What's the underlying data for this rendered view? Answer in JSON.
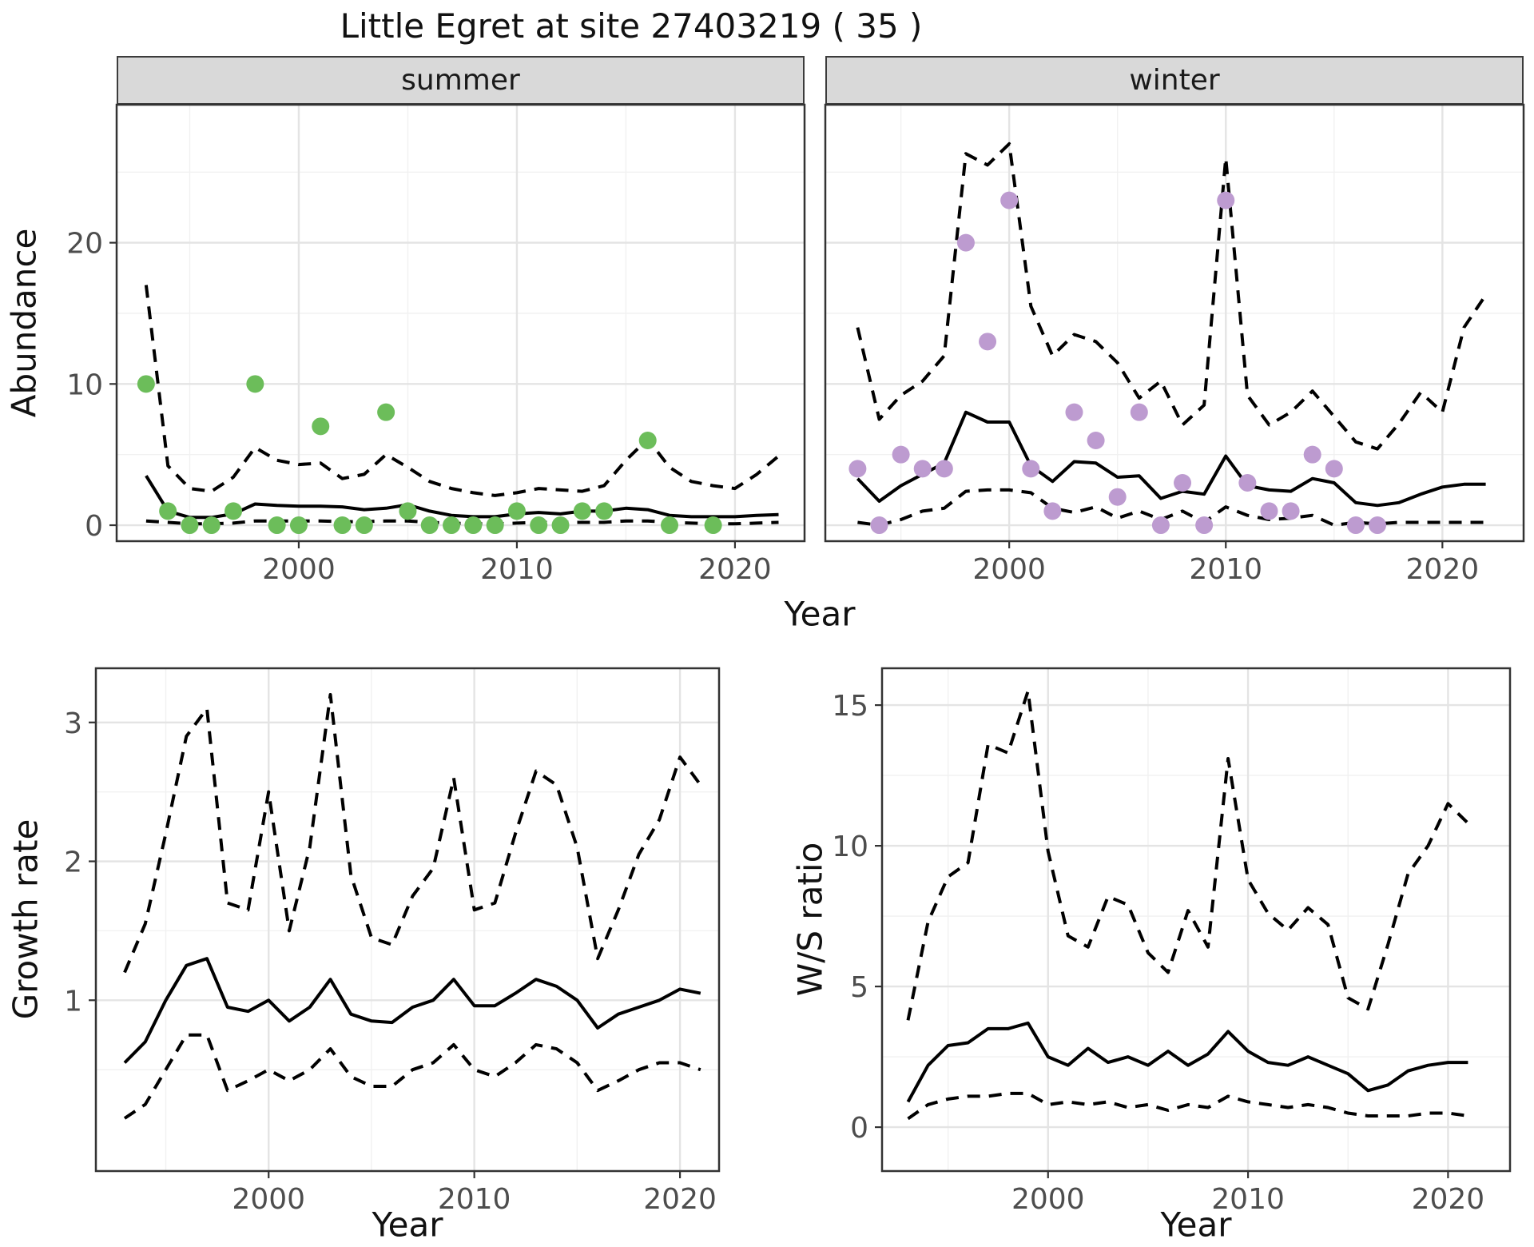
{
  "chart_data": {
    "type": "line",
    "title": "Little Egret at site 27403219 ( 35 )",
    "line_color": "#000000",
    "grid": true,
    "legend": "none",
    "facets": [
      {
        "id": "summer",
        "label": "summer",
        "xlabel": "Year",
        "ylabel": "Abundance",
        "xlim": [
          1991.65,
          2023.19
        ],
        "ylim": [
          -1.13,
          29.77
        ],
        "x_ticks": [
          2000,
          2010,
          2020
        ],
        "x_minor": [
          1995,
          2005,
          2015
        ],
        "y_ticks": [
          0,
          10,
          20
        ],
        "y_minor": [
          5,
          15,
          25
        ],
        "years": [
          1993,
          1994,
          1995,
          1996,
          1997,
          1998,
          1999,
          2000,
          2001,
          2002,
          2003,
          2004,
          2005,
          2006,
          2007,
          2008,
          2009,
          2010,
          2011,
          2012,
          2013,
          2014,
          2015,
          2016,
          2017,
          2018,
          2019,
          2020,
          2021,
          2022
        ],
        "series": [
          {
            "name": "upper-ci",
            "line_style": "dashed",
            "values": [
              17,
              4.2,
              2.6,
              2.4,
              3.4,
              5.5,
              4.6,
              4.3,
              4.4,
              3.3,
              3.6,
              5.0,
              4.1,
              3.1,
              2.6,
              2.3,
              2.1,
              2.3,
              2.6,
              2.5,
              2.4,
              2.8,
              4.6,
              6.1,
              4.1,
              3.1,
              2.8,
              2.6,
              3.6,
              4.9
            ]
          },
          {
            "name": "lower-ci",
            "line_style": "dashed",
            "values": [
              0.3,
              0.2,
              0.1,
              0.1,
              0.15,
              0.3,
              0.3,
              0.3,
              0.3,
              0.25,
              0.25,
              0.3,
              0.3,
              0.2,
              0.15,
              0.1,
              0.1,
              0.15,
              0.2,
              0.2,
              0.2,
              0.2,
              0.3,
              0.3,
              0.2,
              0.15,
              0.1,
              0.1,
              0.15,
              0.2
            ]
          },
          {
            "name": "median",
            "line_style": "solid",
            "values": [
              3.5,
              1.0,
              0.55,
              0.55,
              0.8,
              1.5,
              1.4,
              1.35,
              1.35,
              1.3,
              1.1,
              1.2,
              1.45,
              1.0,
              0.7,
              0.6,
              0.6,
              0.8,
              0.9,
              0.8,
              1.0,
              1.0,
              1.2,
              1.1,
              0.7,
              0.6,
              0.6,
              0.6,
              0.7,
              0.75
            ]
          }
        ],
        "points": {
          "name": "summer-observed-counts",
          "color": "#6cbd5a",
          "values": [
            [
              1993,
              10
            ],
            [
              1994,
              1
            ],
            [
              1995,
              0
            ],
            [
              1996,
              0
            ],
            [
              1997,
              1
            ],
            [
              1998,
              10
            ],
            [
              1999,
              0
            ],
            [
              2000,
              0
            ],
            [
              2001,
              7
            ],
            [
              2002,
              0
            ],
            [
              2003,
              0
            ],
            [
              2004,
              8
            ],
            [
              2005,
              1
            ],
            [
              2006,
              0
            ],
            [
              2007,
              0
            ],
            [
              2008,
              0
            ],
            [
              2009,
              0
            ],
            [
              2010,
              1
            ],
            [
              2011,
              0
            ],
            [
              2012,
              0
            ],
            [
              2013,
              1
            ],
            [
              2014,
              1
            ],
            [
              2016,
              6
            ],
            [
              2017,
              0
            ],
            [
              2019,
              0
            ]
          ]
        }
      },
      {
        "id": "winter",
        "label": "winter",
        "xlabel": "Year",
        "ylabel": "Abundance",
        "xlim": [
          1991.51,
          2023.75
        ],
        "ylim": [
          -1.13,
          29.77
        ],
        "x_ticks": [
          2000,
          2010,
          2020
        ],
        "x_minor": [
          1995,
          2005,
          2015
        ],
        "y_ticks": [
          0,
          10,
          20
        ],
        "y_minor": [
          5,
          15,
          25
        ],
        "years": [
          1993,
          1994,
          1995,
          1996,
          1997,
          1998,
          1999,
          2000,
          2001,
          2002,
          2003,
          2004,
          2005,
          2006,
          2007,
          2008,
          2009,
          2010,
          2011,
          2012,
          2013,
          2014,
          2015,
          2016,
          2017,
          2018,
          2019,
          2020,
          2021,
          2022
        ],
        "series": [
          {
            "name": "upper-ci",
            "line_style": "dashed",
            "values": [
              14,
              7.5,
              9.2,
              10.2,
              12.0,
              26.3,
              25.5,
              27.0,
              15.5,
              12.0,
              13.5,
              13.0,
              11.5,
              9.0,
              10.2,
              7.1,
              8.5,
              26.0,
              9.2,
              7.1,
              8.0,
              9.5,
              7.7,
              5.9,
              5.4,
              7.2,
              9.4,
              8.0,
              14.0,
              16.3
            ]
          },
          {
            "name": "lower-ci",
            "line_style": "dashed",
            "values": [
              0.2,
              0.0,
              0.4,
              1.0,
              1.2,
              2.4,
              2.5,
              2.5,
              2.3,
              1.2,
              0.9,
              1.3,
              0.5,
              1.0,
              0.4,
              1.0,
              0.2,
              1.3,
              0.7,
              0.4,
              0.5,
              0.7,
              0.0,
              0.2,
              0.1,
              0.2,
              0.2,
              0.2,
              0.2,
              0.2
            ]
          },
          {
            "name": "median",
            "line_style": "solid",
            "values": [
              3.3,
              1.7,
              2.8,
              3.6,
              4.4,
              8.0,
              7.3,
              7.3,
              4.2,
              3.1,
              4.5,
              4.4,
              3.4,
              3.5,
              1.9,
              2.4,
              2.2,
              4.9,
              2.8,
              2.5,
              2.4,
              3.3,
              3.0,
              1.6,
              1.4,
              1.6,
              2.2,
              2.7,
              2.9,
              2.9
            ]
          }
        ],
        "points": {
          "name": "winter-observed-counts",
          "color": "#bd9bd0",
          "values": [
            [
              1993,
              4
            ],
            [
              1994,
              0
            ],
            [
              1995,
              5
            ],
            [
              1996,
              4
            ],
            [
              1997,
              4
            ],
            [
              1998,
              20
            ],
            [
              1999,
              13
            ],
            [
              2000,
              23
            ],
            [
              2001,
              4
            ],
            [
              2002,
              1
            ],
            [
              2003,
              8
            ],
            [
              2004,
              6
            ],
            [
              2005,
              2
            ],
            [
              2006,
              8
            ],
            [
              2007,
              0
            ],
            [
              2008,
              3
            ],
            [
              2009,
              0
            ],
            [
              2010,
              23
            ],
            [
              2011,
              3
            ],
            [
              2012,
              1
            ],
            [
              2013,
              1
            ],
            [
              2014,
              5
            ],
            [
              2015,
              4
            ],
            [
              2016,
              0
            ],
            [
              2017,
              0
            ]
          ]
        }
      },
      {
        "id": "growth_rate",
        "label": null,
        "xlabel": "Year",
        "ylabel": "Growth rate",
        "xlim": [
          1991.6,
          2021.9
        ],
        "ylim": [
          -0.23,
          3.39
        ],
        "x_ticks": [
          2000,
          2010,
          2020
        ],
        "x_minor": [
          1995,
          2005,
          2015
        ],
        "y_ticks": [
          1,
          2,
          3
        ],
        "y_minor": [
          0.5,
          1.5,
          2.5
        ],
        "years": [
          1993,
          1994,
          1995,
          1996,
          1997,
          1998,
          1999,
          2000,
          2001,
          2002,
          2003,
          2004,
          2005,
          2006,
          2007,
          2008,
          2009,
          2010,
          2011,
          2012,
          2013,
          2014,
          2015,
          2016,
          2017,
          2018,
          2019,
          2020,
          2021
        ],
        "series": [
          {
            "name": "upper-ci",
            "line_style": "dashed",
            "values": [
              1.2,
              1.55,
              2.2,
              2.9,
              3.1,
              1.7,
              1.65,
              2.5,
              1.5,
              2.1,
              3.2,
              1.9,
              1.45,
              1.4,
              1.75,
              1.95,
              2.6,
              1.65,
              1.7,
              2.2,
              2.65,
              2.55,
              2.1,
              1.3,
              1.65,
              2.05,
              2.3,
              2.75,
              2.55
            ]
          },
          {
            "name": "lower-ci",
            "line_style": "dashed",
            "values": [
              0.15,
              0.25,
              0.5,
              0.75,
              0.75,
              0.35,
              0.42,
              0.5,
              0.42,
              0.5,
              0.65,
              0.45,
              0.38,
              0.38,
              0.5,
              0.55,
              0.68,
              0.5,
              0.45,
              0.55,
              0.68,
              0.65,
              0.55,
              0.35,
              0.42,
              0.5,
              0.55,
              0.55,
              0.5
            ]
          },
          {
            "name": "median",
            "line_style": "solid",
            "values": [
              0.55,
              0.7,
              1.0,
              1.25,
              1.3,
              0.95,
              0.92,
              1.0,
              0.85,
              0.95,
              1.15,
              0.9,
              0.85,
              0.84,
              0.95,
              1.0,
              1.15,
              0.96,
              0.96,
              1.05,
              1.15,
              1.1,
              1.0,
              0.8,
              0.9,
              0.95,
              1.0,
              1.08,
              1.05
            ]
          }
        ],
        "points": null
      },
      {
        "id": "ws_ratio",
        "label": null,
        "xlabel": "Year",
        "ylabel": "W/S ratio",
        "xlim": [
          1991.7,
          2023.1
        ],
        "ylim": [
          -1.56,
          16.31
        ],
        "x_ticks": [
          2000,
          2010,
          2020
        ],
        "x_minor": [
          1995,
          2005,
          2015
        ],
        "y_ticks": [
          0,
          5,
          10,
          15
        ],
        "y_minor": [
          2.5,
          7.5,
          12.5
        ],
        "years": [
          1993,
          1994,
          1995,
          1996,
          1997,
          1998,
          1999,
          2000,
          2001,
          2002,
          2003,
          2004,
          2005,
          2006,
          2007,
          2008,
          2009,
          2010,
          2011,
          2012,
          2013,
          2014,
          2015,
          2016,
          2017,
          2018,
          2019,
          2020,
          2021
        ],
        "series": [
          {
            "name": "upper-ci",
            "line_style": "dashed",
            "values": [
              3.8,
              7.3,
              8.9,
              9.4,
              13.6,
              13.3,
              15.5,
              9.8,
              6.8,
              6.4,
              8.2,
              7.9,
              6.2,
              5.5,
              7.7,
              6.4,
              13.1,
              8.8,
              7.6,
              7.0,
              7.8,
              7.2,
              4.6,
              4.2,
              6.5,
              9.0,
              10.0,
              11.5,
              10.8
            ]
          },
          {
            "name": "lower-ci",
            "line_style": "dashed",
            "values": [
              0.3,
              0.8,
              1.0,
              1.1,
              1.1,
              1.2,
              1.2,
              0.8,
              0.9,
              0.8,
              0.9,
              0.7,
              0.8,
              0.6,
              0.8,
              0.7,
              1.1,
              0.9,
              0.8,
              0.7,
              0.8,
              0.7,
              0.5,
              0.4,
              0.4,
              0.4,
              0.5,
              0.5,
              0.4
            ]
          },
          {
            "name": "median",
            "line_style": "solid",
            "values": [
              0.9,
              2.2,
              2.9,
              3.0,
              3.5,
              3.5,
              3.7,
              2.5,
              2.2,
              2.8,
              2.3,
              2.5,
              2.2,
              2.7,
              2.2,
              2.6,
              3.4,
              2.7,
              2.3,
              2.2,
              2.5,
              2.2,
              1.9,
              1.3,
              1.5,
              2.0,
              2.2,
              2.3,
              2.3
            ]
          }
        ],
        "points": null
      }
    ],
    "style": {
      "strip_bg": "#d9d9d9",
      "panel_border": "#333333",
      "grid_major": "#e4e4e4",
      "grid_minor": "#f1f1f1",
      "axis_text": "#4d4d4d",
      "point_summer": "#6cbd5a",
      "point_winter": "#bd9bd0"
    }
  }
}
